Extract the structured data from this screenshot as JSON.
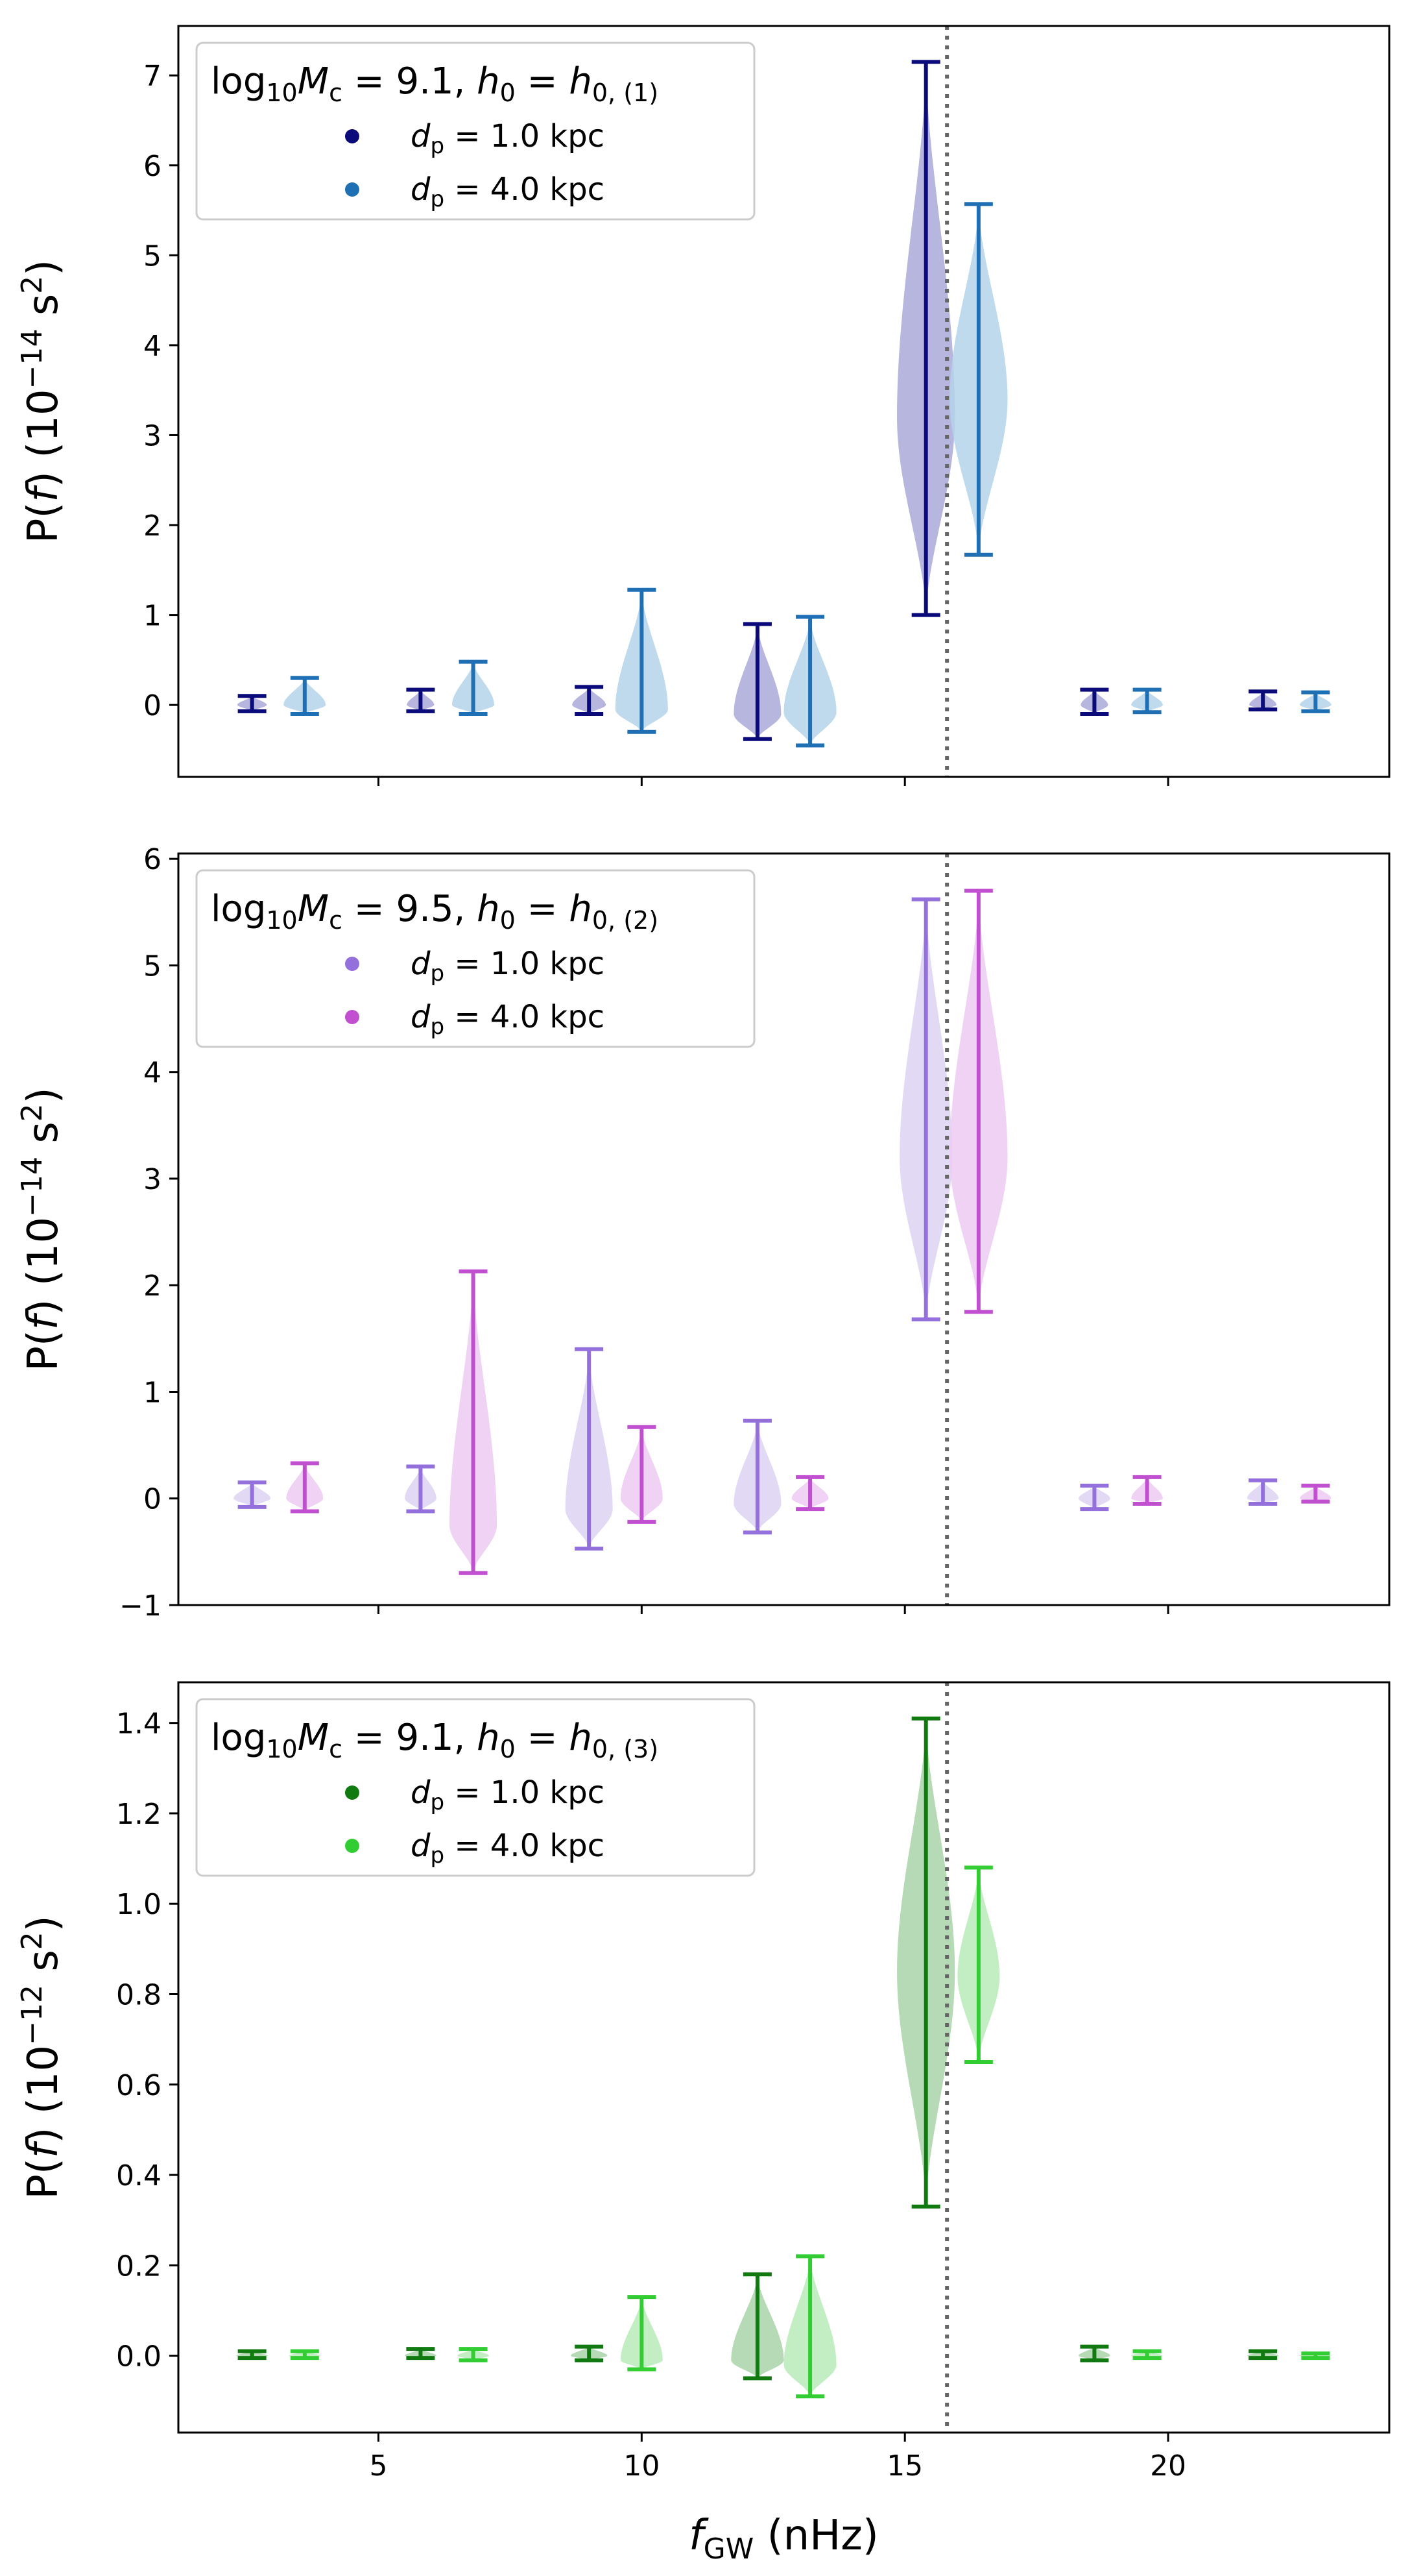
{
  "chart_data": [
    {
      "type": "violin",
      "panel": "top",
      "ylabel": "P(f) (10^-14 s^2)",
      "ylabel_main": "P(f) (10",
      "ylabel_exp": "−14",
      "ylabel_unit": " s",
      "ylabel_unit_exp": "2",
      "ylabel_close": ")",
      "ylim": [
        -0.8,
        7.55
      ],
      "yticks": [
        0,
        1,
        2,
        3,
        4,
        5,
        6,
        7
      ],
      "ytick_labels": [
        "0",
        "1",
        "2",
        "3",
        "4",
        "5",
        "6",
        "7"
      ],
      "legend_title": "log10Mc = 9.1, h0 = h0,(1)",
      "legend_title_prefix": "log",
      "legend_title_sub1": "10",
      "legend_title_m": "M",
      "legend_title_sub2": "c",
      "legend_title_mid": " = 9.1, ",
      "legend_title_h": "h",
      "legend_title_sub3": "0",
      "legend_title_eq": " = ",
      "legend_title_h2": "h",
      "legend_title_sub4": "0, (1)",
      "legend_position": "upper-left",
      "series": [
        {
          "name": "dp = 1.0 kpc",
          "label_d": "d",
          "label_sub": "p",
          "label_rest": " = 1.0 kpc",
          "color": "#0a0a7a",
          "fill": "#a9a9d9",
          "violins": [
            {
              "x": 2.6,
              "min": -0.07,
              "max": 0.1,
              "center": 0.0,
              "half_width": 0.28
            },
            {
              "x": 5.8,
              "min": -0.07,
              "max": 0.17,
              "center": 0.0,
              "half_width": 0.26
            },
            {
              "x": 9.0,
              "min": -0.1,
              "max": 0.2,
              "center": 0.0,
              "half_width": 0.32
            },
            {
              "x": 12.2,
              "min": -0.38,
              "max": 0.9,
              "center": -0.1,
              "half_width": 0.45
            },
            {
              "x": 15.4,
              "min": 1.0,
              "max": 7.15,
              "center": 3.2,
              "half_width": 0.55
            },
            {
              "x": 18.6,
              "min": -0.1,
              "max": 0.17,
              "center": 0.0,
              "half_width": 0.26
            },
            {
              "x": 21.8,
              "min": -0.05,
              "max": 0.15,
              "center": 0.0,
              "half_width": 0.26
            }
          ]
        },
        {
          "name": "dp = 4.0 kpc",
          "label_d": "d",
          "label_sub": "p",
          "label_rest": " = 4.0 kpc",
          "color": "#1f6fb4",
          "fill": "#b5d3ea",
          "violins": [
            {
              "x": 3.6,
              "min": -0.1,
              "max": 0.3,
              "center": 0.0,
              "half_width": 0.4
            },
            {
              "x": 6.8,
              "min": -0.1,
              "max": 0.48,
              "center": 0.0,
              "half_width": 0.4
            },
            {
              "x": 10.0,
              "min": -0.3,
              "max": 1.28,
              "center": -0.05,
              "half_width": 0.5
            },
            {
              "x": 13.2,
              "min": -0.45,
              "max": 0.98,
              "center": -0.08,
              "half_width": 0.5
            },
            {
              "x": 16.4,
              "min": 1.67,
              "max": 5.57,
              "center": 3.4,
              "half_width": 0.55
            },
            {
              "x": 19.6,
              "min": -0.08,
              "max": 0.17,
              "center": 0.0,
              "half_width": 0.3
            },
            {
              "x": 22.8,
              "min": -0.07,
              "max": 0.14,
              "center": 0.0,
              "half_width": 0.3
            }
          ]
        }
      ]
    },
    {
      "type": "violin",
      "panel": "middle",
      "ylabel": "P(f) (10^-14 s^2)",
      "ylabel_main": "P(f) (10",
      "ylabel_exp": "−14",
      "ylabel_unit": " s",
      "ylabel_unit_exp": "2",
      "ylabel_close": ")",
      "ylim": [
        -1.0,
        6.05
      ],
      "yticks": [
        -1,
        0,
        1,
        2,
        3,
        4,
        5,
        6
      ],
      "ytick_labels": [
        "−1",
        "0",
        "1",
        "2",
        "3",
        "4",
        "5",
        "6"
      ],
      "legend_title": "log10Mc = 9.5, h0 = h0,(2)",
      "legend_title_prefix": "log",
      "legend_title_sub1": "10",
      "legend_title_m": "M",
      "legend_title_sub2": "c",
      "legend_title_mid": " = 9.5, ",
      "legend_title_h": "h",
      "legend_title_sub3": "0",
      "legend_title_eq": " = ",
      "legend_title_h2": "h",
      "legend_title_sub4": "0, (2)",
      "legend_position": "upper-left",
      "series": [
        {
          "name": "dp = 1.0 kpc",
          "label_d": "d",
          "label_sub": "p",
          "label_rest": " = 1.0 kpc",
          "color": "#9370db",
          "fill": "#ddd3f3",
          "violins": [
            {
              "x": 2.6,
              "min": -0.08,
              "max": 0.15,
              "center": 0.0,
              "half_width": 0.35
            },
            {
              "x": 5.8,
              "min": -0.12,
              "max": 0.3,
              "center": 0.0,
              "half_width": 0.3
            },
            {
              "x": 9.0,
              "min": -0.47,
              "max": 1.4,
              "center": -0.1,
              "half_width": 0.45
            },
            {
              "x": 12.2,
              "min": -0.32,
              "max": 0.73,
              "center": -0.05,
              "half_width": 0.45
            },
            {
              "x": 15.4,
              "min": 1.68,
              "max": 5.62,
              "center": 3.2,
              "half_width": 0.5
            },
            {
              "x": 18.6,
              "min": -0.1,
              "max": 0.12,
              "center": 0.0,
              "half_width": 0.3
            },
            {
              "x": 21.8,
              "min": -0.05,
              "max": 0.17,
              "center": 0.0,
              "half_width": 0.3
            }
          ]
        },
        {
          "name": "dp = 4.0 kpc",
          "label_d": "d",
          "label_sub": "p",
          "label_rest": " = 4.0 kpc",
          "color": "#c050d0",
          "fill": "#eccaf2",
          "violins": [
            {
              "x": 3.6,
              "min": -0.12,
              "max": 0.33,
              "center": 0.0,
              "half_width": 0.35
            },
            {
              "x": 6.8,
              "min": -0.7,
              "max": 2.13,
              "center": -0.25,
              "half_width": 0.45
            },
            {
              "x": 10.0,
              "min": -0.22,
              "max": 0.67,
              "center": 0.0,
              "half_width": 0.4
            },
            {
              "x": 13.2,
              "min": -0.1,
              "max": 0.2,
              "center": 0.0,
              "half_width": 0.35
            },
            {
              "x": 16.4,
              "min": 1.75,
              "max": 5.7,
              "center": 3.2,
              "half_width": 0.55
            },
            {
              "x": 19.6,
              "min": -0.05,
              "max": 0.2,
              "center": 0.0,
              "half_width": 0.3
            },
            {
              "x": 22.8,
              "min": -0.03,
              "max": 0.12,
              "center": 0.0,
              "half_width": 0.3
            }
          ]
        }
      ]
    },
    {
      "type": "violin",
      "panel": "bottom",
      "ylabel": "P(f) (10^-12 s^2)",
      "ylabel_main": "P(f) (10",
      "ylabel_exp": "−12",
      "ylabel_unit": " s",
      "ylabel_unit_exp": "2",
      "ylabel_close": ")",
      "xlabel": "fGW (nHz)",
      "xlabel_f": "f",
      "xlabel_sub": "GW",
      "xlabel_rest": " (nHz)",
      "xlim": [
        1.2,
        24.2
      ],
      "xticks": [
        5,
        10,
        15,
        20
      ],
      "xtick_labels": [
        "5",
        "10",
        "15",
        "20"
      ],
      "ylim": [
        -0.17,
        1.49
      ],
      "yticks": [
        0.0,
        0.2,
        0.4,
        0.6,
        0.8,
        1.0,
        1.2,
        1.4
      ],
      "ytick_labels": [
        "0.0",
        "0.2",
        "0.4",
        "0.6",
        "0.8",
        "1.0",
        "1.2",
        "1.4"
      ],
      "legend_title": "log10Mc = 9.1, h0 = h0,(3)",
      "legend_title_prefix": "log",
      "legend_title_sub1": "10",
      "legend_title_m": "M",
      "legend_title_sub2": "c",
      "legend_title_mid": " = 9.1, ",
      "legend_title_h": "h",
      "legend_title_sub3": "0",
      "legend_title_eq": " = ",
      "legend_title_h2": "h",
      "legend_title_sub4": "0, (3)",
      "legend_position": "upper-left",
      "series": [
        {
          "name": "dp = 1.0 kpc",
          "label_d": "d",
          "label_sub": "p",
          "label_rest": " = 1.0 kpc",
          "color": "#107a10",
          "fill": "#a9d3a9",
          "violins": [
            {
              "x": 2.6,
              "min": -0.005,
              "max": 0.01,
              "center": 0.0,
              "half_width": 0.3
            },
            {
              "x": 5.8,
              "min": -0.005,
              "max": 0.015,
              "center": 0.0,
              "half_width": 0.3
            },
            {
              "x": 9.0,
              "min": -0.01,
              "max": 0.02,
              "center": 0.0,
              "half_width": 0.35
            },
            {
              "x": 12.2,
              "min": -0.05,
              "max": 0.18,
              "center": -0.01,
              "half_width": 0.5
            },
            {
              "x": 15.4,
              "min": 0.33,
              "max": 1.41,
              "center": 0.85,
              "half_width": 0.55
            },
            {
              "x": 18.6,
              "min": -0.01,
              "max": 0.02,
              "center": 0.0,
              "half_width": 0.3
            },
            {
              "x": 21.8,
              "min": -0.005,
              "max": 0.01,
              "center": 0.0,
              "half_width": 0.3
            }
          ]
        },
        {
          "name": "dp = 4.0 kpc",
          "label_d": "d",
          "label_sub": "p",
          "label_rest": " = 4.0 kpc",
          "color": "#32cd32",
          "fill": "#b8ebb8",
          "violins": [
            {
              "x": 3.6,
              "min": -0.005,
              "max": 0.01,
              "center": 0.0,
              "half_width": 0.3
            },
            {
              "x": 6.8,
              "min": -0.01,
              "max": 0.015,
              "center": 0.0,
              "half_width": 0.3
            },
            {
              "x": 10.0,
              "min": -0.03,
              "max": 0.13,
              "center": -0.01,
              "half_width": 0.4
            },
            {
              "x": 13.2,
              "min": -0.09,
              "max": 0.22,
              "center": -0.02,
              "half_width": 0.5
            },
            {
              "x": 16.4,
              "min": 0.65,
              "max": 1.08,
              "center": 0.84,
              "half_width": 0.4
            },
            {
              "x": 19.6,
              "min": -0.005,
              "max": 0.01,
              "center": 0.0,
              "half_width": 0.3
            },
            {
              "x": 22.8,
              "min": -0.005,
              "max": 0.005,
              "center": 0.0,
              "half_width": 0.3
            }
          ]
        }
      ]
    }
  ],
  "figure": {
    "vline_x": 15.8,
    "vline_color": "#666666",
    "frame_color": "#000000"
  }
}
